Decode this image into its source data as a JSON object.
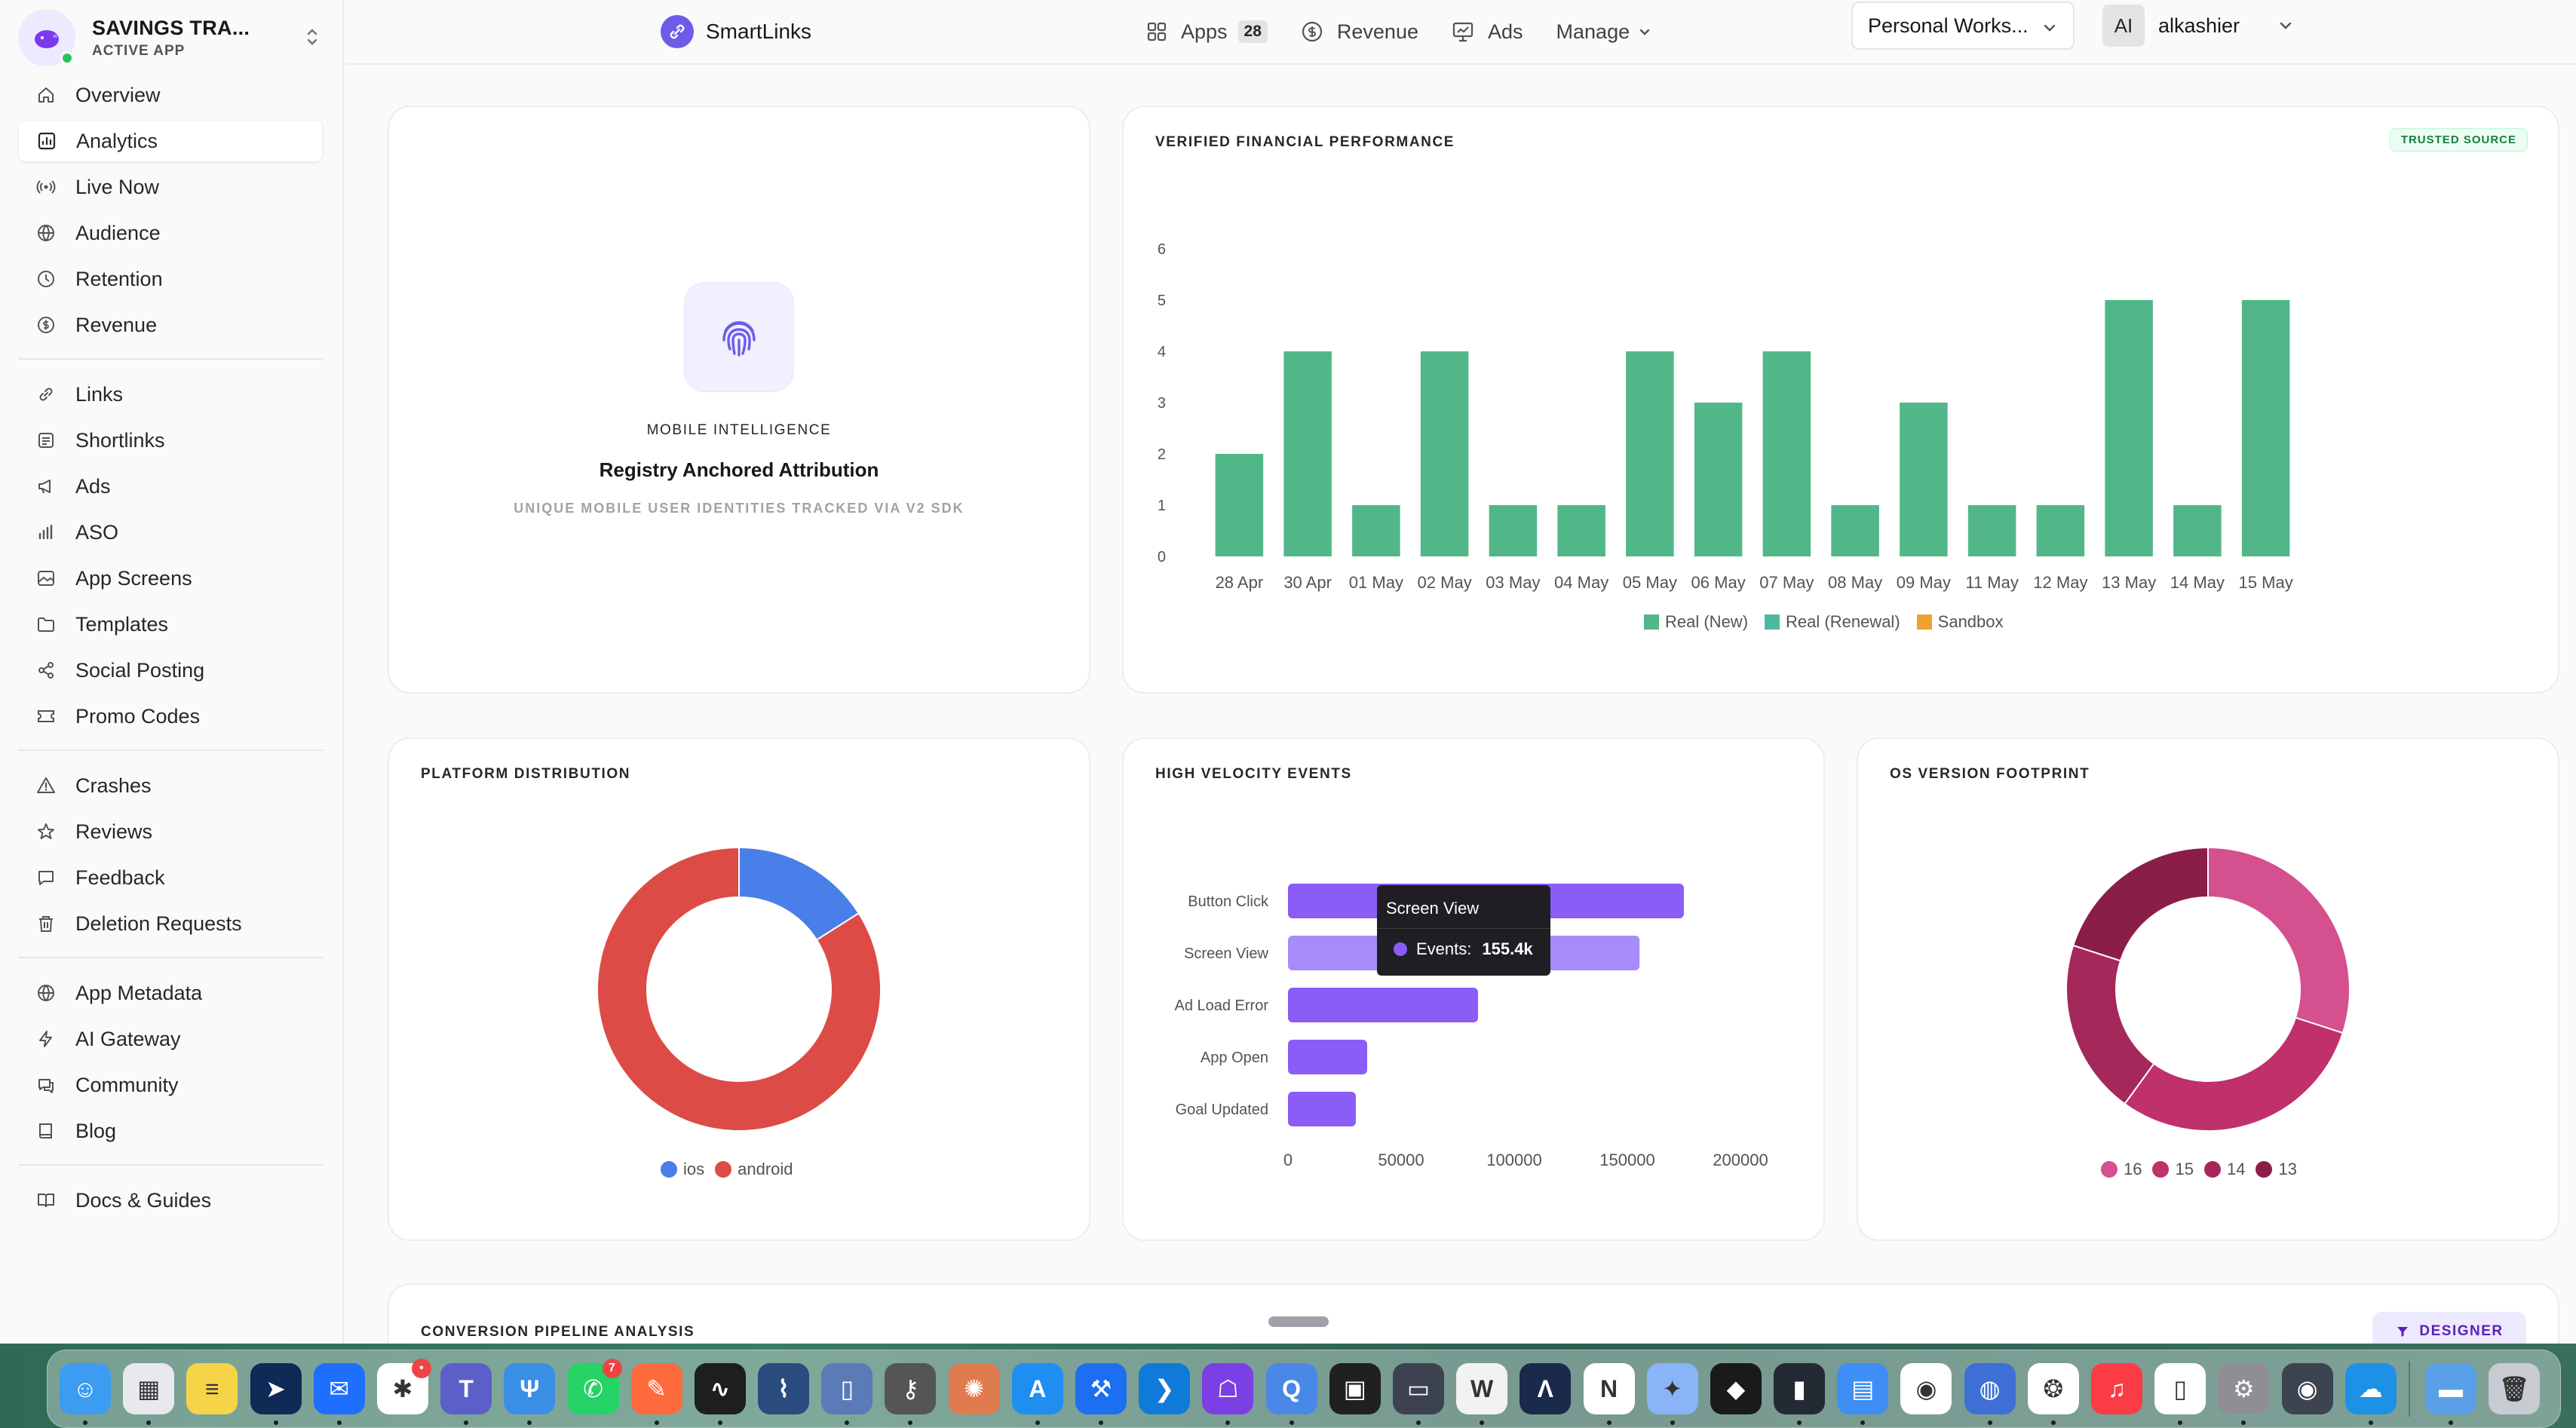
{
  "app": {
    "name": "SAVINGS TRA...",
    "status": "ACTIVE APP"
  },
  "sidebar": {
    "groups": [
      [
        {
          "label": "Overview",
          "icon": "home-icon"
        },
        {
          "label": "Analytics",
          "icon": "chart-icon",
          "active": true
        },
        {
          "label": "Live Now",
          "icon": "broadcast-icon"
        },
        {
          "label": "Audience",
          "icon": "globe-icon"
        },
        {
          "label": "Retention",
          "icon": "clock-icon"
        },
        {
          "label": "Revenue",
          "icon": "dollar-icon"
        }
      ],
      [
        {
          "label": "Links",
          "icon": "link-icon"
        },
        {
          "label": "Shortlinks",
          "icon": "shortlink-icon"
        },
        {
          "label": "Ads",
          "icon": "megaphone-icon"
        },
        {
          "label": "ASO",
          "icon": "bars-icon"
        },
        {
          "label": "App Screens",
          "icon": "image-icon"
        },
        {
          "label": "Templates",
          "icon": "folder-icon"
        },
        {
          "label": "Social Posting",
          "icon": "share-icon"
        },
        {
          "label": "Promo Codes",
          "icon": "ticket-icon"
        }
      ],
      [
        {
          "label": "Crashes",
          "icon": "warning-icon"
        },
        {
          "label": "Reviews",
          "icon": "star-icon"
        },
        {
          "label": "Feedback",
          "icon": "message-icon"
        },
        {
          "label": "Deletion Requests",
          "icon": "trash-icon"
        }
      ],
      [
        {
          "label": "App Metadata",
          "icon": "globe-icon"
        },
        {
          "label": "AI Gateway",
          "icon": "bolt-icon"
        },
        {
          "label": "Community",
          "icon": "chat-icon"
        },
        {
          "label": "Blog",
          "icon": "book-icon"
        }
      ],
      [
        {
          "label": "Docs & Guides",
          "icon": "book-open-icon"
        }
      ]
    ]
  },
  "topbar": {
    "brand": "SmartLinks",
    "apps_label": "Apps",
    "apps_count": "28",
    "revenue_label": "Revenue",
    "ads_label": "Ads",
    "manage_label": "Manage",
    "workspace": "Personal Works...",
    "user_initials": "AI",
    "user_name": "alkashier"
  },
  "mobile_card": {
    "label": "MOBILE INTELLIGENCE",
    "title": "Registry Anchored Attribution",
    "subtitle": "UNIQUE MOBILE USER IDENTITIES TRACKED VIA V2 SDK"
  },
  "financial_card": {
    "title": "VERIFIED FINANCIAL PERFORMANCE",
    "badge": "TRUSTED SOURCE"
  },
  "platform_card": {
    "title": "PLATFORM DISTRIBUTION"
  },
  "events_card": {
    "title": "HIGH VELOCITY EVENTS"
  },
  "os_card": {
    "title": "OS VERSION FOOTPRINT"
  },
  "pipeline": {
    "title": "CONVERSION PIPELINE ANALYSIS",
    "designer_label": "DESIGNER"
  },
  "tooltip": {
    "title": "Screen View",
    "metric": "Events:",
    "value": "155.4k"
  },
  "chart_data": [
    {
      "type": "bar",
      "title": "VERIFIED FINANCIAL PERFORMANCE",
      "categories": [
        "28 Apr",
        "30 Apr",
        "01 May",
        "02 May",
        "03 May",
        "04 May",
        "05 May",
        "06 May",
        "07 May",
        "08 May",
        "09 May",
        "11 May",
        "12 May",
        "13 May",
        "14 May",
        "15 May"
      ],
      "series": [
        {
          "name": "Real (New)",
          "color": "#52b788",
          "values": [
            2,
            4,
            1,
            4,
            1,
            1,
            4,
            3,
            4,
            1,
            3,
            1,
            1,
            5,
            1,
            5
          ]
        },
        {
          "name": "Real (Renewal)",
          "color": "#4fb9a0",
          "values": [
            0,
            0,
            0,
            0,
            0,
            0,
            0,
            0,
            0,
            0,
            0,
            0,
            0,
            0,
            0,
            0
          ]
        },
        {
          "name": "Sandbox",
          "color": "#f0a030",
          "values": [
            0,
            0,
            0,
            0,
            0,
            0,
            0,
            0,
            0,
            0,
            0,
            0,
            0,
            0,
            0,
            0
          ]
        }
      ],
      "ylim": [
        0,
        6
      ],
      "yticks": [
        0,
        1,
        2,
        3,
        4,
        5,
        6
      ],
      "legend": "bottom"
    },
    {
      "type": "pie",
      "title": "PLATFORM DISTRIBUTION",
      "donut": true,
      "slices": [
        {
          "name": "ios",
          "value": 16,
          "color": "#4a7ee8"
        },
        {
          "name": "android",
          "value": 84,
          "color": "#dc4b45"
        }
      ],
      "legend": "bottom"
    },
    {
      "type": "bar",
      "orientation": "horizontal",
      "title": "HIGH VELOCITY EVENTS",
      "categories": [
        "Button Click",
        "Screen View",
        "Ad Load Error",
        "App Open",
        "Goal Updated"
      ],
      "values": [
        175000,
        155400,
        84000,
        35000,
        30000
      ],
      "colors": [
        "#8b5cf6",
        "#a78bfa",
        "#8b5cf6",
        "#8b5cf6",
        "#8b5cf6"
      ],
      "xticks": [
        0,
        50000,
        100000,
        150000,
        200000
      ],
      "xlim": [
        0,
        200000
      ]
    },
    {
      "type": "pie",
      "title": "OS VERSION FOOTPRINT",
      "donut": true,
      "slices": [
        {
          "name": "16",
          "value": 30,
          "color": "#d4508f"
        },
        {
          "name": "15",
          "value": 30,
          "color": "#c0306b"
        },
        {
          "name": "14",
          "value": 20,
          "color": "#a5285a"
        },
        {
          "name": "13",
          "value": 20,
          "color": "#8a1e48"
        }
      ],
      "legend": "bottom"
    }
  ],
  "dock": {
    "apps": [
      {
        "name": "Finder",
        "color": "#3b9cf2",
        "glyph": "☺"
      },
      {
        "name": "Launchpad",
        "color": "#e8e8ee",
        "glyph": "▦"
      },
      {
        "name": "Notes",
        "color": "#f6d448",
        "glyph": "≡"
      },
      {
        "name": "Telegram-like",
        "color": "#0f2a57",
        "glyph": "➤"
      },
      {
        "name": "Messenger",
        "color": "#1f6fff",
        "glyph": "✉"
      },
      {
        "name": "Slack",
        "color": "#ffffff",
        "glyph": "✱",
        "badge": "•"
      },
      {
        "name": "Teams",
        "color": "#5b5fc7",
        "glyph": "T"
      },
      {
        "name": "Fork",
        "color": "#3a8ee6",
        "glyph": "Ψ"
      },
      {
        "name": "WhatsApp",
        "color": "#25d366",
        "glyph": "✆",
        "badge": "7"
      },
      {
        "name": "Pen",
        "color": "#ff6a3d",
        "glyph": "✎"
      },
      {
        "name": "Activity",
        "color": "#1e1e1e",
        "glyph": "∿"
      },
      {
        "name": "Source",
        "color": "#2b4c7e",
        "glyph": "⌇"
      },
      {
        "name": "Simulator",
        "color": "#5a7ab8",
        "glyph": "▯"
      },
      {
        "name": "Keychain",
        "color": "#555555",
        "glyph": "⚷"
      },
      {
        "name": "Claude",
        "color": "#e07a4f",
        "glyph": "✺"
      },
      {
        "name": "AppStore",
        "color": "#1f8ef1",
        "glyph": "A"
      },
      {
        "name": "Xcode",
        "color": "#1b6ff0",
        "glyph": "⚒"
      },
      {
        "name": "VSCode",
        "color": "#0f7ad8",
        "glyph": "❯"
      },
      {
        "name": "Ghost",
        "color": "#7b3fe4",
        "glyph": "☖"
      },
      {
        "name": "Search",
        "color": "#4a88e8",
        "glyph": "Q"
      },
      {
        "name": "Terminal",
        "color": "#202020",
        "glyph": "▣"
      },
      {
        "name": "Screen",
        "color": "#3c4250",
        "glyph": "▭"
      },
      {
        "name": "W",
        "color": "#f2f2f2",
        "glyph": "W"
      },
      {
        "name": "Affinity",
        "color": "#1a2a4a",
        "glyph": "Λ"
      },
      {
        "name": "Notion",
        "color": "#ffffff",
        "glyph": "N"
      },
      {
        "name": "Gemini",
        "color": "#8ab4f8",
        "glyph": "✦"
      },
      {
        "name": "Cube",
        "color": "#1a1a1a",
        "glyph": "◆"
      },
      {
        "name": "Stats",
        "color": "#222a33",
        "glyph": "▮"
      },
      {
        "name": "Files",
        "color": "#3d8ef5",
        "glyph": "▤"
      },
      {
        "name": "Chrome",
        "color": "#ffffff",
        "glyph": "◉"
      },
      {
        "name": "Drive",
        "color": "#3d6fd6",
        "glyph": "◍"
      },
      {
        "name": "ChatGPT",
        "color": "#ffffff",
        "glyph": "❂"
      },
      {
        "name": "Music",
        "color": "#fc3c44",
        "glyph": "♫"
      },
      {
        "name": "Device",
        "color": "#ffffff",
        "glyph": "▯"
      },
      {
        "name": "Settings",
        "color": "#8e8e93",
        "glyph": "⚙"
      },
      {
        "name": "Eye",
        "color": "#3c4450",
        "glyph": "◉"
      },
      {
        "name": "Docker",
        "color": "#1d91e6",
        "glyph": "☁"
      },
      {
        "name": "Folder",
        "color": "#5aa0e8",
        "glyph": "▬"
      },
      {
        "name": "Trash",
        "color": "#c8ccd2",
        "glyph": "🗑"
      }
    ]
  }
}
